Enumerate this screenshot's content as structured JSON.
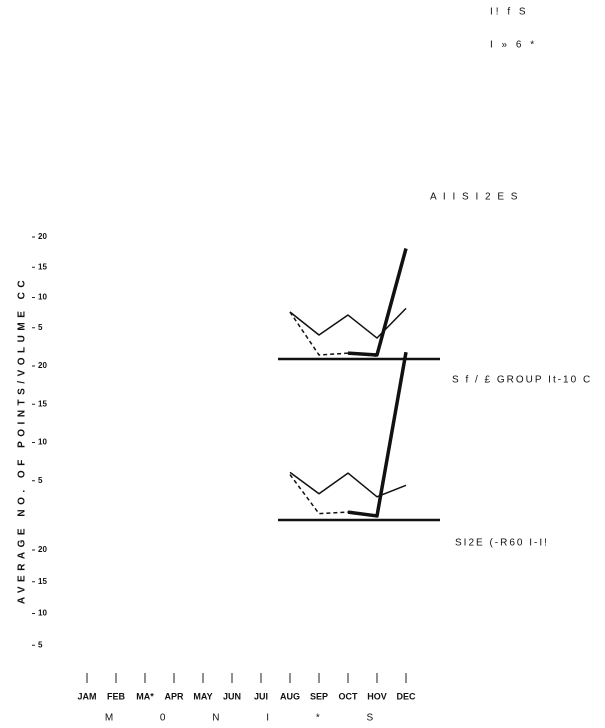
{
  "chart_data": {
    "type": "line",
    "annotations": [
      "I! f S",
      "I » 6 *"
    ],
    "ylabel": "AVERAGE NO. OF POINTS/VOLUME CC",
    "xlabel": "M 0 N I * S",
    "categories": [
      "JAM",
      "FEB",
      "MA*",
      "APR",
      "MAY",
      "JUN",
      "JUI",
      "AUG",
      "SEP",
      "OCT",
      "HOV",
      "DEC"
    ],
    "panels": [
      {
        "title": "A I I S I 2 E S",
        "ylim": [
          0,
          20
        ],
        "yticks": [
          5,
          10,
          15,
          20
        ],
        "series": [
          {
            "color": "#111",
            "dash": false,
            "width": 1.5,
            "values": [
              null,
              null,
              null,
              null,
              null,
              null,
              null,
              7.6,
              3.8,
              7.1,
              3.3,
              8.2
            ]
          },
          {
            "color": "#111",
            "dash": true,
            "width": 1.5,
            "values": [
              null,
              null,
              null,
              null,
              null,
              null,
              null,
              7.6,
              0.5,
              0.8,
              0.3,
              null
            ]
          },
          {
            "color": "#111",
            "dash": false,
            "width": 3.5,
            "values": [
              null,
              null,
              null,
              null,
              null,
              null,
              null,
              null,
              null,
              0.8,
              0.5,
              18.1
            ]
          }
        ]
      },
      {
        "title": "S f / £ GROUP It-10 C",
        "ylim": [
          0,
          20
        ],
        "yticks": [
          5,
          10,
          15,
          20
        ],
        "series": [
          {
            "color": "#111",
            "dash": false,
            "width": 1.5,
            "values": [
              null,
              null,
              null,
              null,
              null,
              null,
              null,
              6.1,
              3.3,
              6.0,
              2.9,
              4.4
            ]
          },
          {
            "color": "#111",
            "dash": true,
            "width": 1.5,
            "values": [
              null,
              null,
              null,
              null,
              null,
              null,
              null,
              5.8,
              0.7,
              0.9,
              0.4,
              null
            ]
          },
          {
            "color": "#111",
            "dash": false,
            "width": 3.5,
            "values": [
              null,
              null,
              null,
              null,
              null,
              null,
              null,
              null,
              null,
              0.9,
              0.4,
              21.8
            ]
          }
        ]
      },
      {
        "title": "SI2E (-R60 I-I!",
        "ylim": [
          0,
          20
        ],
        "yticks": [
          5,
          10,
          15,
          20
        ],
        "series": []
      }
    ]
  }
}
